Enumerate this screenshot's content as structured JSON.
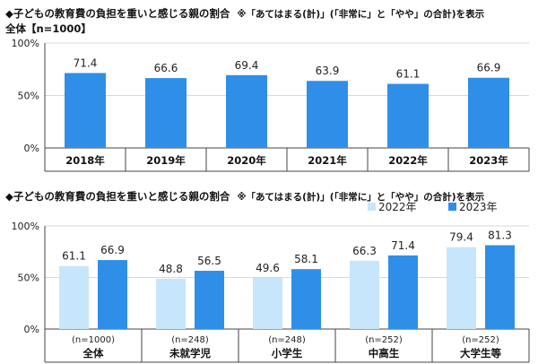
{
  "chart_data": [
    {
      "type": "bar",
      "title": "◆子どもの教育費の負担を重いと感じる親の割合",
      "note": "※「あてはまる(計)」(「非常に」と「やや」の合計)を表示",
      "subtitle": "全体【n=1000】",
      "categories": [
        "2018年",
        "2019年",
        "2020年",
        "2021年",
        "2022年",
        "2023年"
      ],
      "values": [
        71.4,
        66.6,
        69.4,
        63.9,
        61.1,
        66.9
      ],
      "ylim": [
        0,
        100
      ],
      "yticks": [
        "0%",
        "50%",
        "100%"
      ],
      "color": "#2f8fe8"
    },
    {
      "type": "bar",
      "title": "◆子どもの教育費の負担を重いと感じる親の割合",
      "note": "※「あてはまる(計)」(「非常に」と「やや」の合計)を表示",
      "categories": [
        "全体",
        "未就学児",
        "小学生",
        "中高生",
        "大学生等"
      ],
      "n_labels": [
        "(n=1000)",
        "(n=248)",
        "(n=248)",
        "(n=252)",
        "(n=252)"
      ],
      "series": [
        {
          "name": "2022年",
          "values": [
            61.1,
            48.8,
            49.6,
            66.3,
            79.4
          ],
          "color": "#c8e6fb"
        },
        {
          "name": "2023年",
          "values": [
            66.9,
            56.5,
            58.1,
            71.4,
            81.3
          ],
          "color": "#2f8fe8"
        }
      ],
      "ylim": [
        0,
        100
      ],
      "yticks": [
        "0%",
        "50%",
        "100%"
      ],
      "legend": "top-right"
    }
  ]
}
